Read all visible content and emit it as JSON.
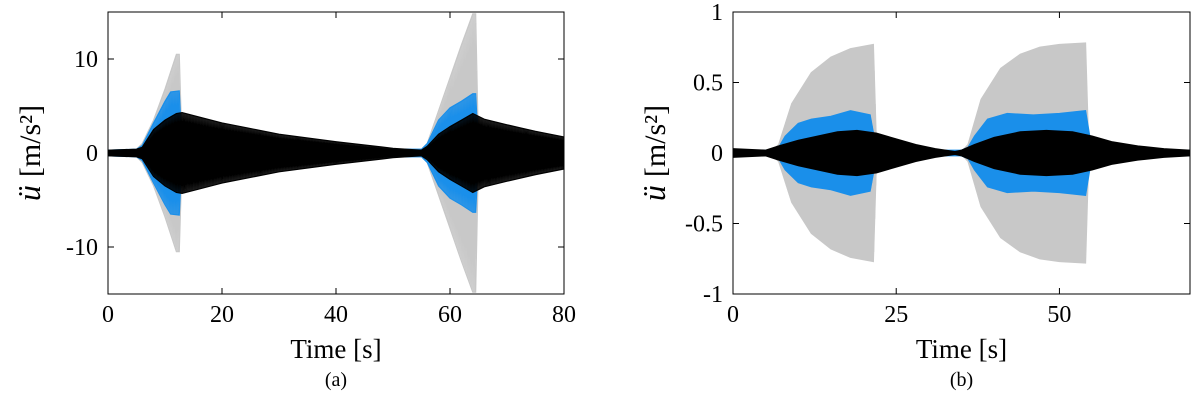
{
  "chart_data": [
    {
      "type": "line",
      "panel_label": "(a)",
      "xlabel": "Time [s]",
      "ylabel_symbol": "ü",
      "ylabel_unit": "[m/s²]",
      "xlim": [
        0,
        80
      ],
      "ylim": [
        -15,
        15
      ],
      "xticks": [
        0,
        20,
        40,
        60,
        80
      ],
      "xtick_labels": [
        "0",
        "20",
        "40",
        "60",
        "80"
      ],
      "yticks": [
        10,
        0,
        -10
      ],
      "ytick_labels": [
        "10",
        "0",
        "-10"
      ],
      "grid": false,
      "series_colors": [
        "#c8c8c8",
        "#1a8fea",
        "#000000"
      ],
      "series": [
        {
          "x": [
            0,
            5,
            6,
            8,
            10,
            12,
            12.5,
            13,
            55,
            56,
            58,
            60,
            62,
            64,
            64.5,
            65,
            80
          ],
          "envelope": [
            0.3,
            0.4,
            1.0,
            3.5,
            6.8,
            10.5,
            10.5,
            0.4,
            0.4,
            1.0,
            4.5,
            8.0,
            11.5,
            14.8,
            14.8,
            0.4,
            0.3
          ]
        },
        {
          "x": [
            0,
            5,
            6,
            8,
            10,
            11,
            12.5,
            13,
            55,
            56,
            58,
            60,
            62,
            64,
            64.5,
            65,
            80
          ],
          "envelope": [
            0.3,
            0.4,
            0.8,
            3.2,
            5.5,
            6.5,
            6.6,
            0.4,
            0.4,
            1.0,
            3.5,
            4.8,
            5.5,
            6.3,
            6.3,
            0.4,
            0.3
          ]
        },
        {
          "x": [
            0,
            5,
            6,
            8,
            10,
            12,
            13,
            20,
            30,
            40,
            50,
            55,
            56,
            58,
            60,
            62,
            64,
            66,
            70,
            75,
            80
          ],
          "envelope": [
            0.3,
            0.4,
            0.6,
            2.5,
            3.5,
            4.2,
            4.3,
            3.2,
            2.0,
            1.2,
            0.5,
            0.3,
            0.7,
            2.0,
            2.8,
            3.5,
            4.2,
            3.6,
            3.0,
            2.3,
            1.7
          ]
        }
      ]
    },
    {
      "type": "line",
      "panel_label": "(b)",
      "xlabel": "Time [s]",
      "ylabel_symbol": "ü",
      "ylabel_unit": "[m/s²]",
      "xlim": [
        0,
        70
      ],
      "ylim": [
        -1,
        1
      ],
      "xticks": [
        0,
        25,
        50
      ],
      "xtick_labels": [
        "0",
        "25",
        "50"
      ],
      "yticks": [
        1,
        0.5,
        0,
        -0.5,
        -1
      ],
      "ytick_labels": [
        "1",
        "0.5",
        "0",
        "-0.5",
        "-1"
      ],
      "grid": false,
      "series_colors": [
        "#c8c8c8",
        "#1a8fea",
        "#000000"
      ],
      "series": [
        {
          "x": [
            0,
            6,
            7,
            9,
            12,
            15,
            18,
            21.5,
            22,
            35,
            36,
            38,
            41,
            44,
            47,
            50,
            54,
            54.5,
            70
          ],
          "envelope": [
            0.02,
            0.02,
            0.06,
            0.35,
            0.57,
            0.68,
            0.74,
            0.77,
            0.01,
            0.01,
            0.06,
            0.38,
            0.6,
            0.7,
            0.75,
            0.77,
            0.78,
            0.01,
            0.01
          ]
        },
        {
          "x": [
            0,
            6,
            7,
            8,
            10,
            12,
            15,
            18,
            21,
            22,
            35,
            36,
            37,
            39,
            42,
            46,
            50,
            54,
            55,
            70
          ],
          "envelope": [
            0.02,
            0.02,
            0.04,
            0.12,
            0.21,
            0.24,
            0.26,
            0.3,
            0.27,
            0.02,
            0.02,
            0.04,
            0.12,
            0.24,
            0.28,
            0.27,
            0.28,
            0.3,
            0.02,
            0.02
          ]
        },
        {
          "x": [
            0,
            5,
            7,
            10,
            13,
            16,
            19,
            22,
            25,
            28,
            31,
            34,
            35,
            37,
            40,
            44,
            48,
            52,
            55,
            58,
            62,
            66,
            70
          ],
          "envelope": [
            0.03,
            0.02,
            0.05,
            0.09,
            0.12,
            0.15,
            0.16,
            0.14,
            0.1,
            0.06,
            0.03,
            0.01,
            0.02,
            0.06,
            0.11,
            0.15,
            0.16,
            0.15,
            0.12,
            0.08,
            0.05,
            0.03,
            0.02
          ]
        }
      ]
    }
  ]
}
